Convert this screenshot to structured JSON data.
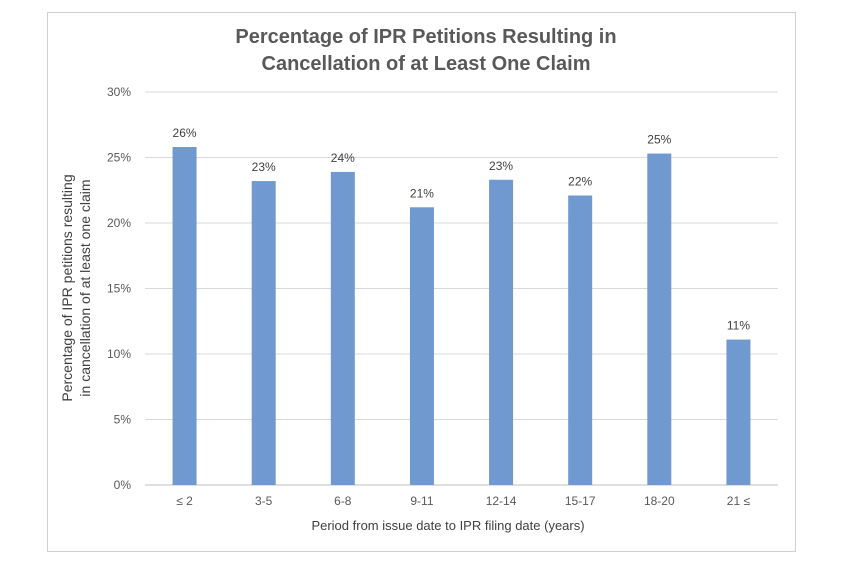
{
  "chart_data": {
    "type": "bar",
    "title": "Percentage of IPR Petitions Resulting in Cancellation of at Least One Claim",
    "title_lines": [
      "Percentage of IPR Petitions Resulting in",
      "Cancellation of at Least One Claim"
    ],
    "xlabel": "Period from issue date to IPR filing date (years)",
    "ylabel_lines": [
      "Percentage of IPR petitions resulting",
      "in cancellation of at least one claim"
    ],
    "categories": [
      "≤ 2",
      "3-5",
      "6-8",
      "9-11",
      "12-14",
      "15-17",
      "18-20",
      "21 ≤"
    ],
    "values": [
      25.8,
      23.2,
      23.9,
      21.2,
      23.3,
      22.1,
      25.3,
      11.1
    ],
    "data_labels": [
      "26%",
      "23%",
      "24%",
      "21%",
      "23%",
      "22%",
      "25%",
      "11%"
    ],
    "yticks": [
      0,
      5,
      10,
      15,
      20,
      25,
      30
    ],
    "ytick_labels": [
      "0%",
      "5%",
      "10%",
      "15%",
      "20%",
      "25%",
      "30%"
    ],
    "ylim": [
      0,
      30
    ],
    "grid": true,
    "bar_color": "#7099cf"
  }
}
